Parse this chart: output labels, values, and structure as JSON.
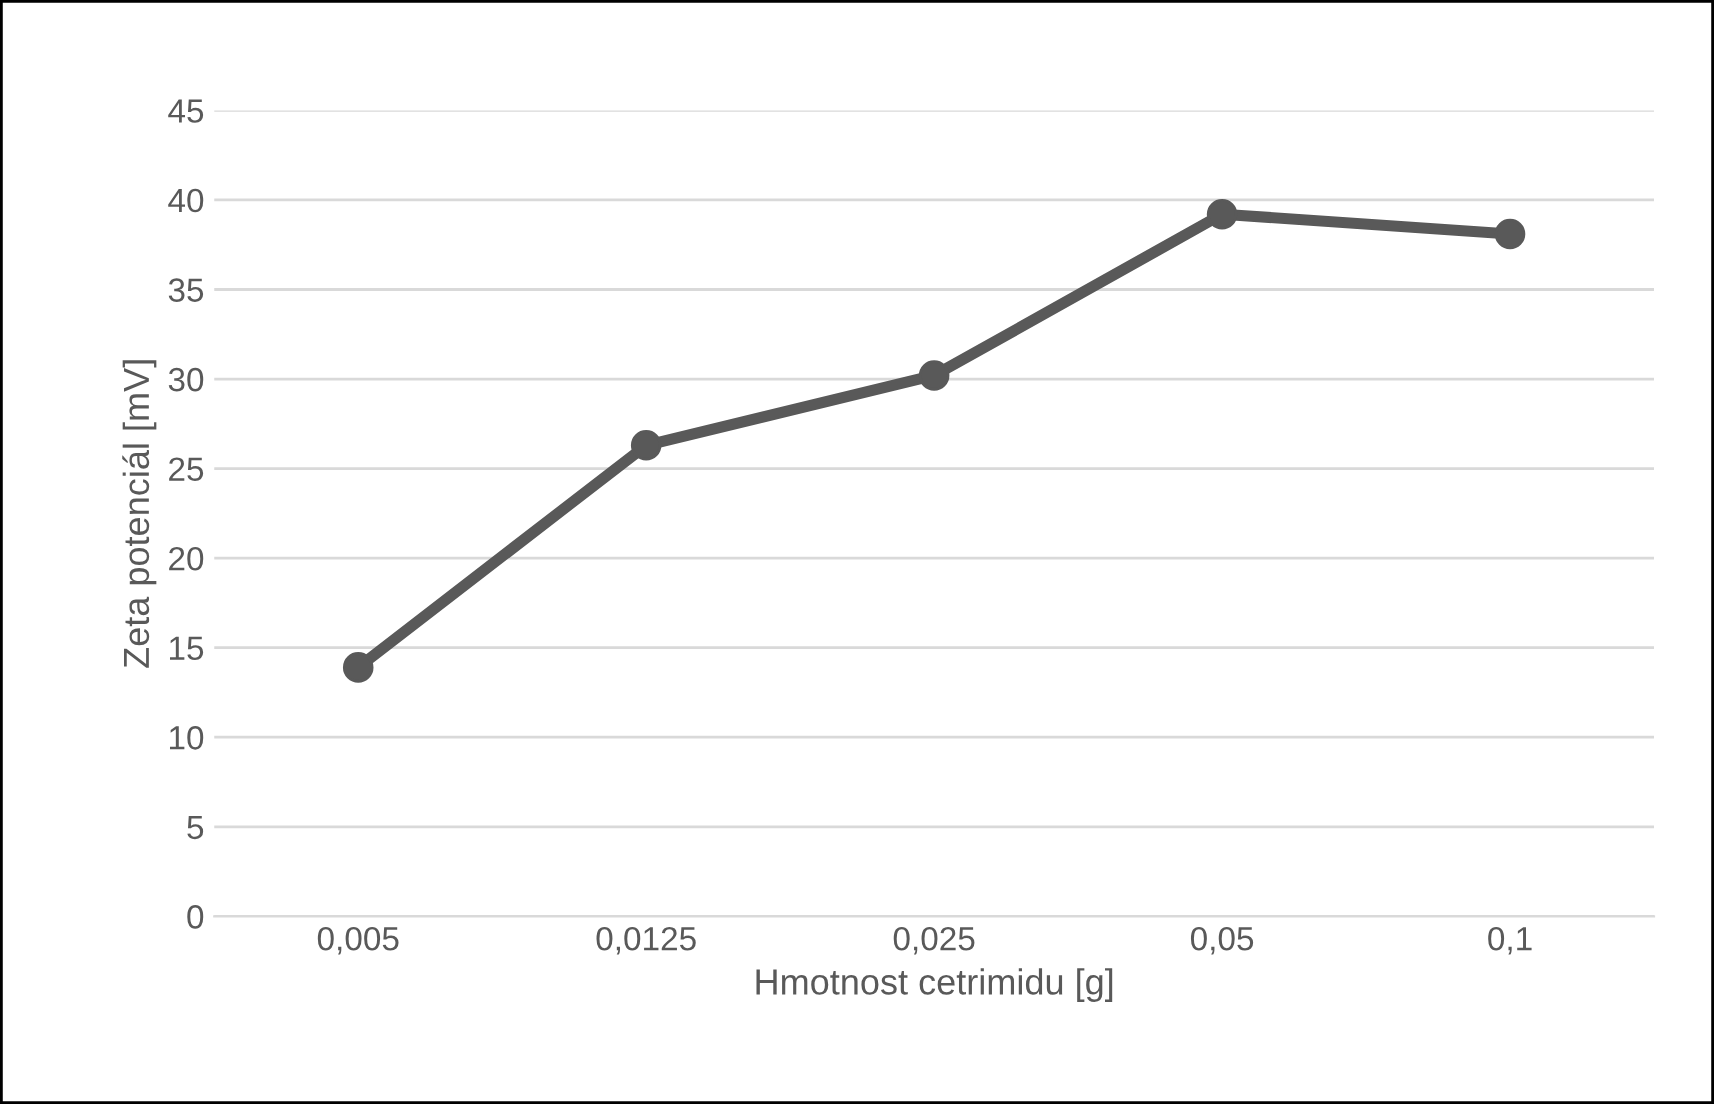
{
  "chart_data": {
    "type": "line",
    "xlabel": "Hmotnost cetrimidu [g]",
    "ylabel": "Zeta potenciál [mV]",
    "categories": [
      "0,005",
      "0,0125",
      "0,025",
      "0,05",
      "0,1"
    ],
    "series": [
      {
        "color": "#595959",
        "values": [
          13.9,
          26.3,
          30.2,
          39.2,
          38.1
        ]
      }
    ],
    "ylim": [
      0,
      45
    ],
    "yticks": [
      0,
      5,
      10,
      15,
      20,
      25,
      30,
      35,
      40,
      45
    ],
    "grid": "y",
    "marker": "circle",
    "line_style": "solid",
    "legend": false
  }
}
